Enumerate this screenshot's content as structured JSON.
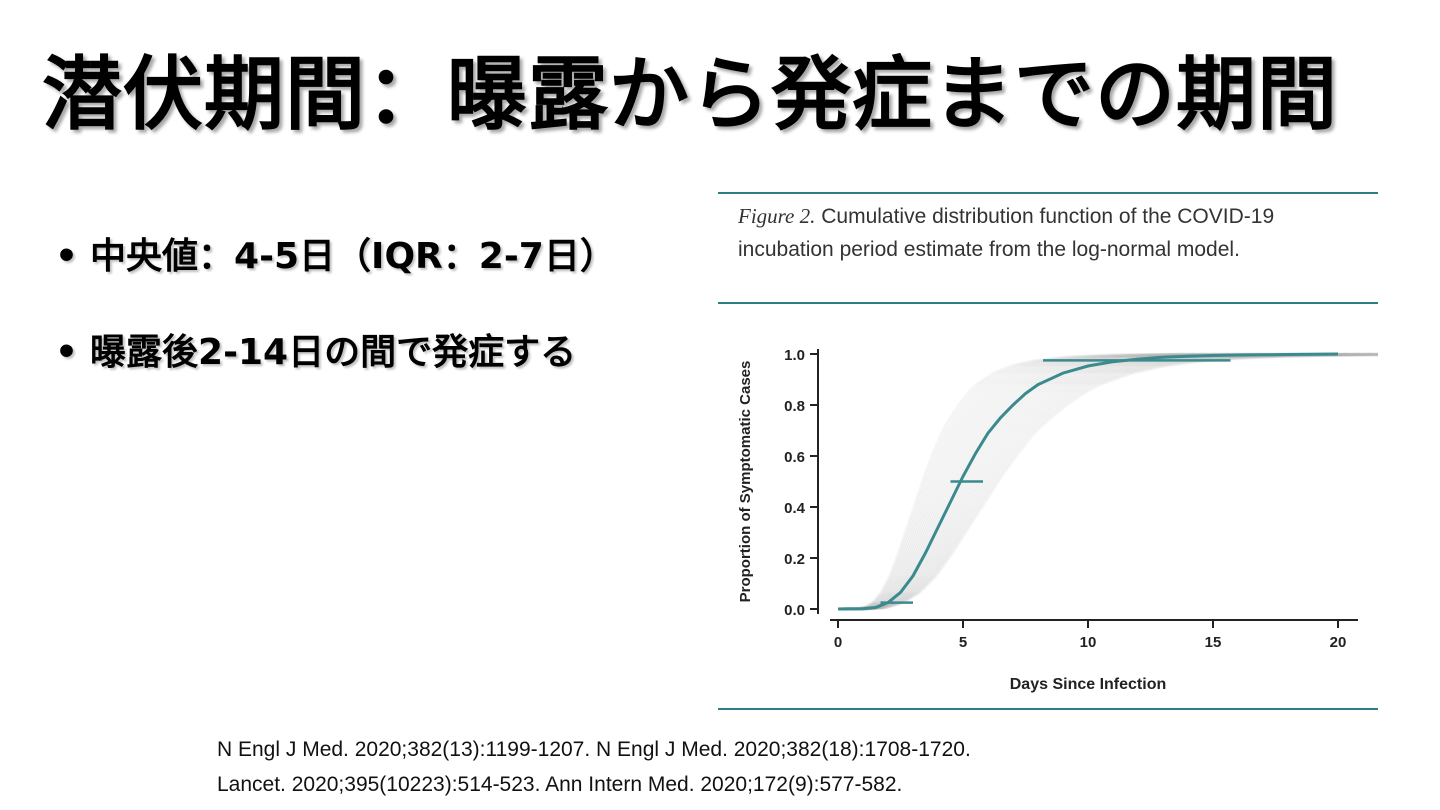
{
  "slide": {
    "title": "潜伏期間：曝露から発症までの期間",
    "bullets": [
      {
        "marker": "•",
        "text": "中央値：4-5日（IQR：2-7日）"
      },
      {
        "marker": "•",
        "text": "曝露後2-14日の間で発症する"
      }
    ],
    "references": [
      "N Engl J Med. 2020;382(13):1199-1207.  N Engl J Med. 2020;382(18):1708-1720.",
      "Lancet. 2020;395(10223):514-523. Ann Intern Med. 2020;172(9):577-582."
    ]
  },
  "figure": {
    "label": "Figure 2.",
    "caption": "Cumulative distribution function of the COVID-19 incubation period estimate from the log-normal model.",
    "rule_color": "#2a7f86"
  },
  "chart_data": {
    "type": "line",
    "xlabel": "Days Since Infection",
    "ylabel": "Proportion of Symptomatic Cases",
    "xlim": [
      0,
      20
    ],
    "ylim": [
      0,
      1.0
    ],
    "xticks": [
      0,
      5,
      10,
      15,
      20
    ],
    "xtick_labels": [
      "0",
      "5",
      "10",
      "15",
      "20"
    ],
    "yticks": [
      0.0,
      0.2,
      0.4,
      0.6,
      0.8,
      1.0
    ],
    "ytick_labels": [
      "0.0",
      "0.2",
      "0.4",
      "0.6",
      "0.8",
      "1.0"
    ],
    "main_color": "#3a8a8e",
    "band_color": "#9e9e9e",
    "series": [
      {
        "x": [
          0,
          1,
          1.5,
          2,
          2.5,
          3,
          3.5,
          4,
          4.5,
          5,
          5.5,
          6,
          6.5,
          7,
          7.5,
          8,
          9,
          10,
          11,
          12,
          13,
          14,
          15,
          16,
          17,
          18,
          19,
          20
        ],
        "values": [
          0,
          0.001,
          0.006,
          0.025,
          0.065,
          0.13,
          0.22,
          0.32,
          0.42,
          0.52,
          0.61,
          0.69,
          0.75,
          0.8,
          0.845,
          0.88,
          0.925,
          0.953,
          0.97,
          0.98,
          0.987,
          0.991,
          0.994,
          0.996,
          0.997,
          0.998,
          0.999,
          1.0
        ]
      }
    ],
    "interval_bars": [
      {
        "y": 0.025,
        "x_start": 1.7,
        "x_end": 3.0
      },
      {
        "y": 0.5,
        "x_start": 4.5,
        "x_end": 5.8
      },
      {
        "y": 0.975,
        "x_start": 8.2,
        "x_end": 15.7
      }
    ]
  }
}
